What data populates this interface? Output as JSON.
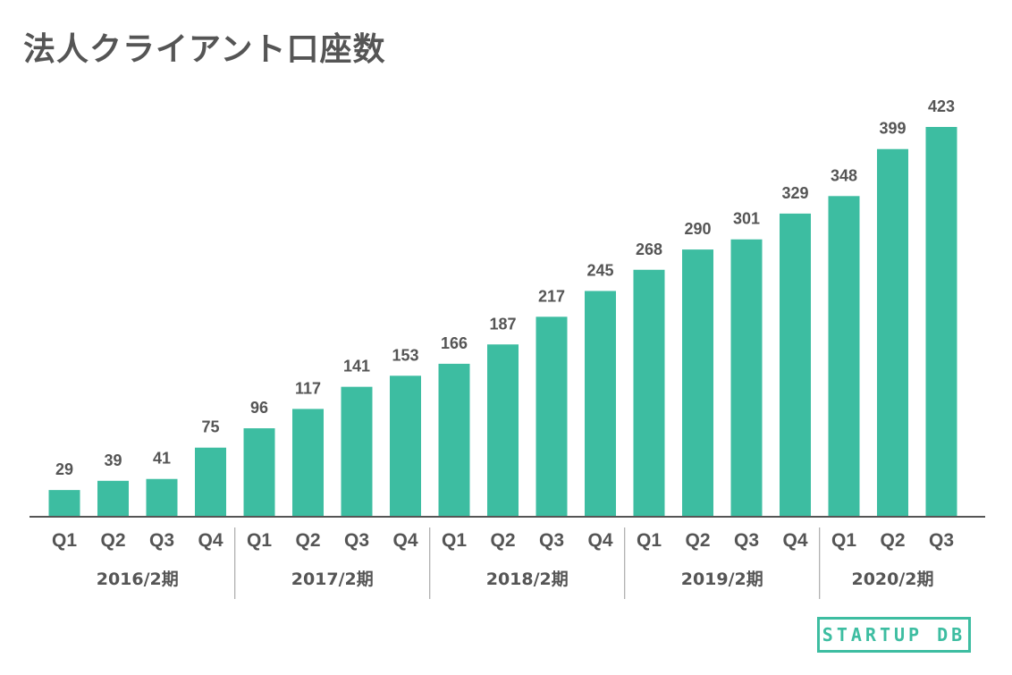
{
  "chart_data": {
    "type": "bar",
    "title": "法人クライアント口座数",
    "categories": [
      "Q1",
      "Q2",
      "Q3",
      "Q4",
      "Q1",
      "Q2",
      "Q3",
      "Q4",
      "Q1",
      "Q2",
      "Q3",
      "Q4",
      "Q1",
      "Q2",
      "Q3",
      "Q4",
      "Q1",
      "Q2",
      "Q3"
    ],
    "values": [
      29,
      39,
      41,
      75,
      96,
      117,
      141,
      153,
      166,
      187,
      217,
      245,
      268,
      290,
      301,
      329,
      348,
      399,
      423
    ],
    "groups": [
      {
        "label": "2016/2期",
        "count": 4
      },
      {
        "label": "2017/2期",
        "count": 4
      },
      {
        "label": "2018/2期",
        "count": 4
      },
      {
        "label": "2019/2期",
        "count": 4
      },
      {
        "label": "2020/2期",
        "count": 3
      }
    ],
    "data_labels": true,
    "grid": false,
    "ylim": [
      0,
      423
    ],
    "bar_color": "#3dbda1"
  },
  "logo": {
    "text": "STARTUP DB",
    "color": "#3dbda1"
  }
}
